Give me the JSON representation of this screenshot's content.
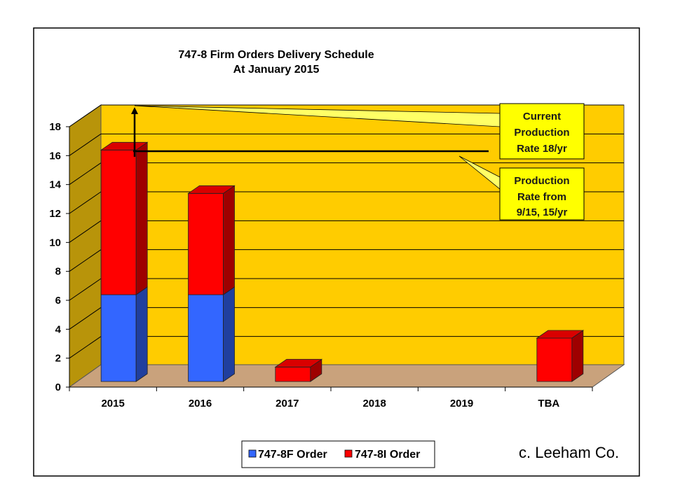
{
  "chart_data": {
    "type": "bar",
    "stacked": true,
    "title": "747-8 Firm Orders Delivery Schedule",
    "subtitle": "At January 2015",
    "categories": [
      "2015",
      "2016",
      "2017",
      "2018",
      "2019",
      "TBA"
    ],
    "series": [
      {
        "name": "747-8F Order",
        "color": "#3366ff",
        "values": [
          6,
          6,
          0,
          0,
          0,
          0
        ]
      },
      {
        "name": "747-8I Order",
        "color": "#ff0000",
        "values": [
          10,
          7,
          1,
          0,
          0,
          3
        ]
      }
    ],
    "ylim": [
      0,
      18
    ],
    "yticks": [
      "0",
      "2",
      "4",
      "6",
      "8",
      "10",
      "12",
      "14",
      "16",
      "18"
    ],
    "grid": true,
    "legend_position": "bottom",
    "wall_color": "#ffcc00",
    "floor_color": "#c9a27c",
    "reference_lines": [
      {
        "label_lines": [
          "Current",
          "Production",
          "Rate 18/yr"
        ],
        "value": 18
      },
      {
        "label_lines": [
          "Production",
          "Rate from",
          "9/15, 15/yr"
        ],
        "value": 15
      }
    ]
  },
  "credit": "c. Leeham Co."
}
